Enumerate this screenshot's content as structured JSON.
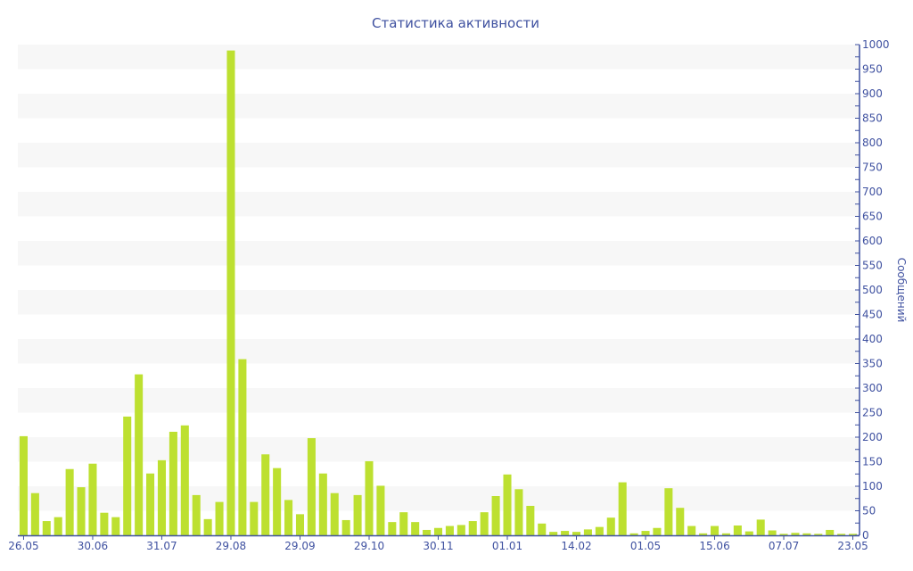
{
  "chart_data": {
    "type": "bar",
    "title": "Статистика активности",
    "xlabel": "",
    "ylabel": "Сообщений",
    "ylim": [
      0,
      1000
    ],
    "y_ticks": [
      0,
      50,
      100,
      150,
      200,
      250,
      300,
      350,
      400,
      450,
      500,
      550,
      600,
      650,
      700,
      750,
      800,
      850,
      900,
      950,
      1000
    ],
    "y_axis_side": "right",
    "x_tick_every": 6,
    "x_tick_labels": [
      "26.05",
      "30.06",
      "31.07",
      "29.08",
      "29.09",
      "29.10",
      "30.11",
      "01.01",
      "14.02",
      "01.05",
      "15.06",
      "07.07",
      "23.05"
    ],
    "values": [
      202,
      86,
      29,
      37,
      135,
      98,
      146,
      46,
      37,
      242,
      328,
      126,
      153,
      211,
      224,
      82,
      33,
      68,
      988,
      359,
      68,
      165,
      137,
      72,
      43,
      198,
      126,
      86,
      31,
      82,
      151,
      101,
      27,
      47,
      27,
      11,
      15,
      19,
      21,
      29,
      47,
      80,
      124,
      94,
      60,
      24,
      7,
      9,
      7,
      12,
      17,
      36,
      108,
      4,
      9,
      15,
      96,
      56,
      19,
      4,
      19,
      4,
      20,
      8,
      32,
      10,
      3,
      5,
      4,
      3,
      11,
      3,
      3
    ],
    "grid": "alternating horizontal bands",
    "legend": "none",
    "colors": {
      "bar": "#bde030",
      "axis": "#3f51a0",
      "band": "#f7f7f7"
    }
  }
}
